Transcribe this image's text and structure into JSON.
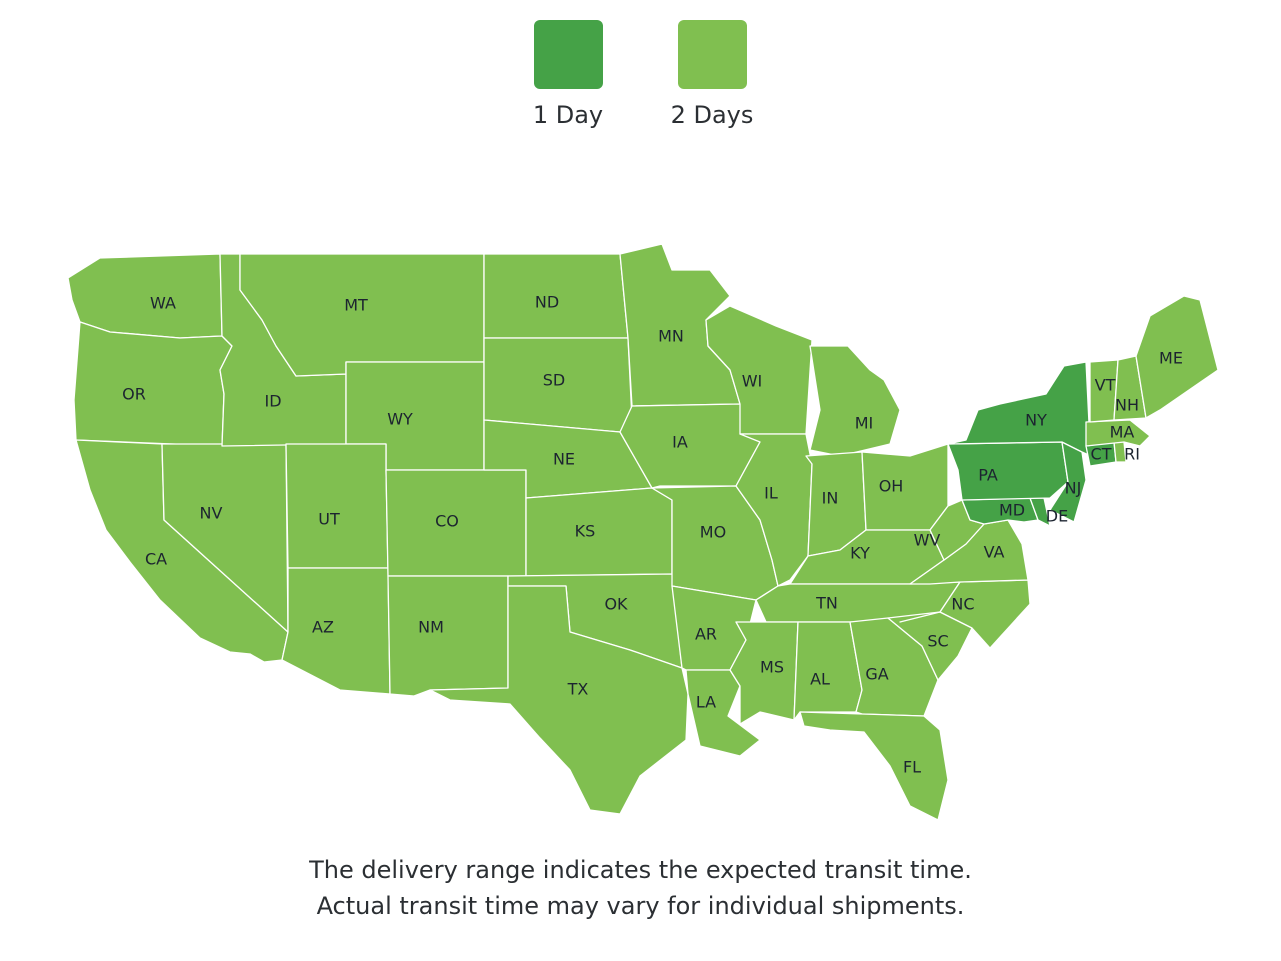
{
  "legend": [
    {
      "label": "1 Day",
      "color": "#45a247"
    },
    {
      "label": "2 Days",
      "color": "#80bf50"
    }
  ],
  "states": [
    {
      "abbr": "WA",
      "days": 2
    },
    {
      "abbr": "OR",
      "days": 2
    },
    {
      "abbr": "CA",
      "days": 2
    },
    {
      "abbr": "NV",
      "days": 2
    },
    {
      "abbr": "ID",
      "days": 2
    },
    {
      "abbr": "MT",
      "days": 2
    },
    {
      "abbr": "WY",
      "days": 2
    },
    {
      "abbr": "UT",
      "days": 2
    },
    {
      "abbr": "AZ",
      "days": 2
    },
    {
      "abbr": "CO",
      "days": 2
    },
    {
      "abbr": "NM",
      "days": 2
    },
    {
      "abbr": "ND",
      "days": 2
    },
    {
      "abbr": "SD",
      "days": 2
    },
    {
      "abbr": "NE",
      "days": 2
    },
    {
      "abbr": "KS",
      "days": 2
    },
    {
      "abbr": "OK",
      "days": 2
    },
    {
      "abbr": "TX",
      "days": 2
    },
    {
      "abbr": "MN",
      "days": 2
    },
    {
      "abbr": "IA",
      "days": 2
    },
    {
      "abbr": "MO",
      "days": 2
    },
    {
      "abbr": "AR",
      "days": 2
    },
    {
      "abbr": "LA",
      "days": 2
    },
    {
      "abbr": "WI",
      "days": 2
    },
    {
      "abbr": "IL",
      "days": 2
    },
    {
      "abbr": "MI",
      "days": 2
    },
    {
      "abbr": "IN",
      "days": 2
    },
    {
      "abbr": "OH",
      "days": 2
    },
    {
      "abbr": "KY",
      "days": 2
    },
    {
      "abbr": "TN",
      "days": 2
    },
    {
      "abbr": "MS",
      "days": 2
    },
    {
      "abbr": "AL",
      "days": 2
    },
    {
      "abbr": "GA",
      "days": 2
    },
    {
      "abbr": "FL",
      "days": 2
    },
    {
      "abbr": "SC",
      "days": 2
    },
    {
      "abbr": "NC",
      "days": 2
    },
    {
      "abbr": "VA",
      "days": 2
    },
    {
      "abbr": "WV",
      "days": 2
    },
    {
      "abbr": "MD",
      "days": 1
    },
    {
      "abbr": "DE",
      "days": 1
    },
    {
      "abbr": "PA",
      "days": 1
    },
    {
      "abbr": "NJ",
      "days": 1
    },
    {
      "abbr": "NY",
      "days": 1
    },
    {
      "abbr": "CT",
      "days": 1
    },
    {
      "abbr": "RI",
      "days": 2
    },
    {
      "abbr": "MA",
      "days": 2
    },
    {
      "abbr": "VT",
      "days": 2
    },
    {
      "abbr": "NH",
      "days": 2
    },
    {
      "abbr": "ME",
      "days": 2
    }
  ],
  "footnote": {
    "line1": "The delivery range indicates the expected transit time.",
    "line2": "Actual transit time may vary for individual shipments."
  }
}
